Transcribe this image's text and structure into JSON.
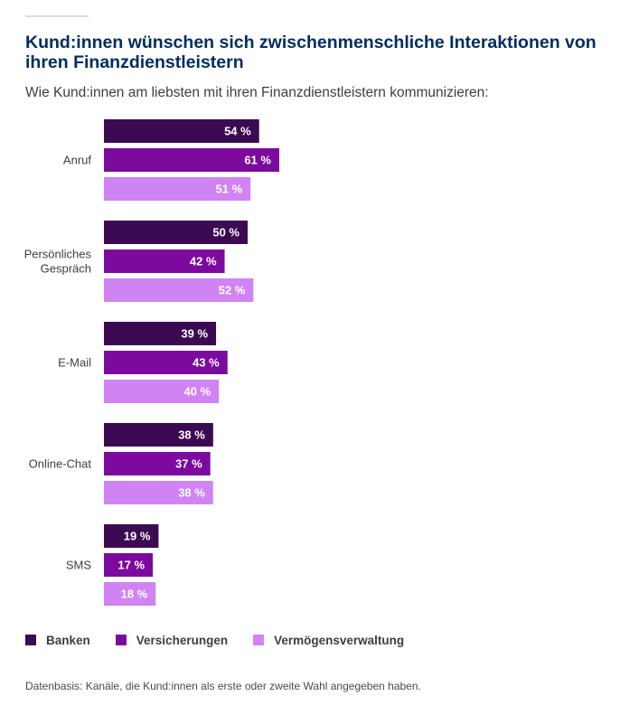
{
  "header": {
    "title": "Kund:innen wünschen sich zwischenmenschliche Interaktionen von ihren Finanzdienstleistern",
    "subtitle": "Wie Kund:innen am liebsten mit ihren Finanzdienstleistern kommunizieren:"
  },
  "colors": {
    "title": "#032d60",
    "banken": "#3b0a52",
    "versicherungen": "#7c0a9e",
    "vermoegensverwaltung": "#d084f4"
  },
  "chart_data": {
    "type": "bar",
    "orientation": "horizontal",
    "value_suffix": " %",
    "categories": [
      [
        "Anruf"
      ],
      [
        "Persönliches",
        "Gespräch"
      ],
      [
        "E-Mail"
      ],
      [
        "Online-Chat"
      ],
      [
        "SMS"
      ]
    ],
    "series": [
      {
        "name": "Banken",
        "color": "#3b0a52",
        "values": [
          54,
          50,
          39,
          38,
          19
        ]
      },
      {
        "name": "Versicherungen",
        "color": "#7c0a9e",
        "values": [
          61,
          42,
          43,
          37,
          17
        ]
      },
      {
        "name": "Vermögensverwaltung",
        "color": "#d084f4",
        "values": [
          51,
          52,
          40,
          38,
          18
        ]
      }
    ],
    "xlim": [
      0,
      100
    ],
    "legend_position": "bottom-left"
  },
  "footnote": "Datenbasis: Kanäle, die Kund:innen als erste oder zweite Wahl angegeben haben."
}
